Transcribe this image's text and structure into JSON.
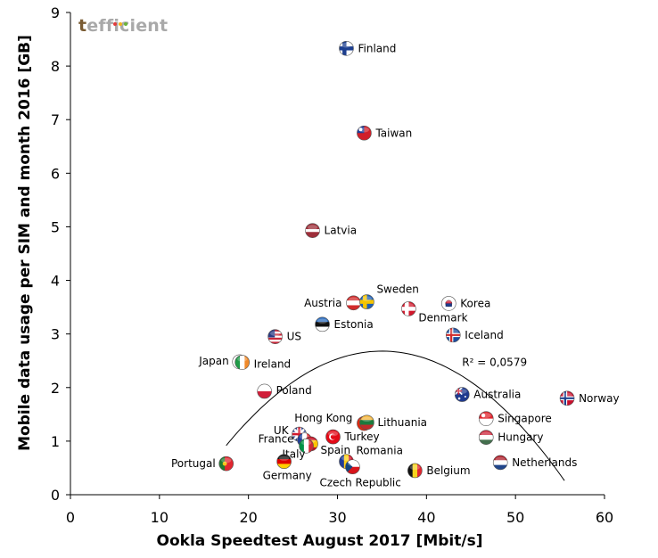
{
  "logo": {
    "first_letter": "t",
    "rest": "efficient",
    "dot_colors": [
      "#e23b3b",
      "#f2b21b",
      "#6bb33b"
    ]
  },
  "chart_data": {
    "type": "scatter",
    "title": "",
    "xlabel": "Ookla Speedtest August 2017 [Mbit/s]",
    "ylabel": "Mobile data usage per SIM and month 2016 [GB]",
    "xlim": [
      0,
      60
    ],
    "ylim": [
      0,
      9
    ],
    "x_ticks": [
      0,
      10,
      20,
      30,
      40,
      50,
      60
    ],
    "y_ticks": [
      0,
      1,
      2,
      3,
      4,
      5,
      6,
      7,
      8,
      9
    ],
    "grid": false,
    "trendline": {
      "type": "polynomial",
      "x_range": [
        17.5,
        55.5
      ],
      "label": "R² = 0,0579"
    },
    "points": [
      {
        "label": "Finland",
        "x": 31.0,
        "y": 8.33,
        "flag": "finland"
      },
      {
        "label": "Taiwan",
        "x": 33.0,
        "y": 6.75,
        "flag": "taiwan"
      },
      {
        "label": "Latvia",
        "x": 27.2,
        "y": 4.93,
        "flag": "latvia"
      },
      {
        "label": "Austria",
        "x": 31.8,
        "y": 3.58,
        "flag": "austria"
      },
      {
        "label": "Sweden",
        "x": 33.3,
        "y": 3.6,
        "flag": "sweden"
      },
      {
        "label": "Korea",
        "x": 42.5,
        "y": 3.57,
        "flag": "korea"
      },
      {
        "label": "Denmark",
        "x": 38.0,
        "y": 3.47,
        "flag": "denmark"
      },
      {
        "label": "Estonia",
        "x": 28.3,
        "y": 3.18,
        "flag": "estonia"
      },
      {
        "label": "Iceland",
        "x": 43.0,
        "y": 2.98,
        "flag": "iceland"
      },
      {
        "label": "US",
        "x": 23.0,
        "y": 2.95,
        "flag": "us"
      },
      {
        "label": "Japan",
        "x": 19.0,
        "y": 2.48,
        "flag": "japan"
      },
      {
        "label": "Ireland",
        "x": 19.3,
        "y": 2.47,
        "flag": "ireland"
      },
      {
        "label": "Poland",
        "x": 21.8,
        "y": 1.93,
        "flag": "poland"
      },
      {
        "label": "Australia",
        "x": 44.0,
        "y": 1.87,
        "flag": "australia"
      },
      {
        "label": "Norway",
        "x": 55.8,
        "y": 1.8,
        "flag": "norway"
      },
      {
        "label": "Hong Kong",
        "x": 33.0,
        "y": 1.33,
        "flag": "hongkong"
      },
      {
        "label": "Lithuania",
        "x": 33.3,
        "y": 1.35,
        "flag": "lithuania"
      },
      {
        "label": "Singapore",
        "x": 46.7,
        "y": 1.42,
        "flag": "singapore"
      },
      {
        "label": "UK",
        "x": 25.7,
        "y": 1.13,
        "flag": "uk"
      },
      {
        "label": "Turkey",
        "x": 29.5,
        "y": 1.08,
        "flag": "turkey"
      },
      {
        "label": "Hungary",
        "x": 46.7,
        "y": 1.07,
        "flag": "hungary"
      },
      {
        "label": "France",
        "x": 26.3,
        "y": 1.02,
        "flag": "france"
      },
      {
        "label": "Spain",
        "x": 27.0,
        "y": 0.95,
        "flag": "spain"
      },
      {
        "label": "Italy",
        "x": 26.5,
        "y": 0.91,
        "flag": "italy"
      },
      {
        "label": "Romania",
        "x": 31.0,
        "y": 0.62,
        "flag": "romania"
      },
      {
        "label": "Germany",
        "x": 24.0,
        "y": 0.62,
        "flag": "germany"
      },
      {
        "label": "Portugal",
        "x": 17.5,
        "y": 0.58,
        "flag": "portugal"
      },
      {
        "label": "Netherlands",
        "x": 48.3,
        "y": 0.6,
        "flag": "netherlands"
      },
      {
        "label": "Czech Republic",
        "x": 31.7,
        "y": 0.52,
        "flag": "czech"
      },
      {
        "label": "Belgium",
        "x": 38.7,
        "y": 0.45,
        "flag": "belgium"
      }
    ]
  }
}
